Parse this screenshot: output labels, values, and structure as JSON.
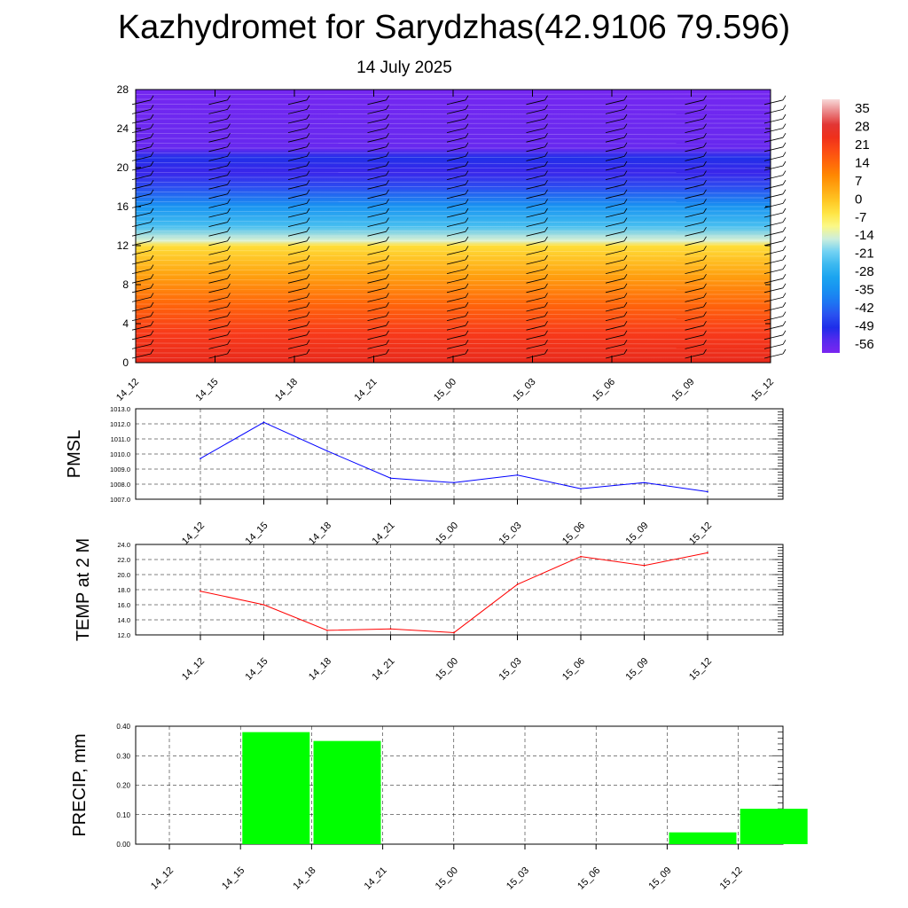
{
  "header": {
    "title": "Kazhydromet for Sarydzhas(42.9106 79.596)",
    "date": "14 July 2025"
  },
  "chart_data": [
    {
      "type": "heatmap",
      "ylim": [
        0,
        28
      ],
      "y_ticks": [
        "0",
        "4",
        "8",
        "12",
        "16",
        "20",
        "24",
        "28"
      ],
      "x_ticks": [
        "14_12",
        "14_15",
        "14_18",
        "14_21",
        "15_00",
        "15_03",
        "15_06",
        "15_09",
        "15_12"
      ],
      "colorbar_labels": [
        "35",
        "28",
        "21",
        "14",
        "7",
        "0",
        "-7",
        "-14",
        "-21",
        "-28",
        "-35",
        "-42",
        "-49",
        "-56"
      ],
      "colorbar_range": [
        -63,
        42
      ],
      "profile": [
        {
          "y": 0,
          "value": 28
        },
        {
          "y": 3,
          "value": 24
        },
        {
          "y": 6,
          "value": 16
        },
        {
          "y": 9,
          "value": 6
        },
        {
          "y": 12,
          "value": -4
        },
        {
          "y": 12.5,
          "value": -15
        },
        {
          "y": 14,
          "value": -25
        },
        {
          "y": 16,
          "value": -36
        },
        {
          "y": 18,
          "value": -48
        },
        {
          "y": 19.5,
          "value": -56
        },
        {
          "y": 21,
          "value": -52
        },
        {
          "y": 22,
          "value": -60
        },
        {
          "y": 28,
          "value": -62
        }
      ],
      "colors": {
        "dark_red": "#e0201c",
        "red": "#f83a1a",
        "orange": "#ff8b00",
        "yellow": "#fff86a",
        "light_blue": "#9ae1f5",
        "blue": "#18a3f0",
        "deep_blue": "#1a22e6",
        "violet": "#7a26f0"
      }
    },
    {
      "type": "line",
      "ylabel": "PMSL",
      "ylim": [
        1007.0,
        1013.0
      ],
      "y_ticks": [
        "1007.0",
        "1008.0",
        "1009.0",
        "1010.0",
        "1011.0",
        "1012.0",
        "1013.0"
      ],
      "categories": [
        "14_12",
        "14_15",
        "14_18",
        "14_21",
        "15_00",
        "15_03",
        "15_06",
        "15_09",
        "15_12"
      ],
      "values": [
        1009.7,
        1012.1,
        1010.2,
        1008.4,
        1008.1,
        1008.6,
        1007.7,
        1008.1,
        1007.5
      ],
      "color": "#0000ff"
    },
    {
      "type": "line",
      "ylabel": "TEMP at 2 M",
      "ylim": [
        12.0,
        24.0
      ],
      "y_ticks": [
        "12.0",
        "14.0",
        "16.0",
        "18.0",
        "20.0",
        "22.0",
        "24.0"
      ],
      "categories": [
        "14_12",
        "14_15",
        "14_18",
        "14_21",
        "15_00",
        "15_03",
        "15_06",
        "15_09",
        "15_12"
      ],
      "values": [
        17.8,
        16.0,
        12.6,
        12.8,
        12.3,
        18.7,
        22.4,
        21.2,
        22.9
      ],
      "color": "#ff0000"
    },
    {
      "type": "bar",
      "ylabel": "PRECIP, mm",
      "ylim": [
        0.0,
        0.4
      ],
      "y_ticks": [
        "0.00",
        "0.10",
        "0.20",
        "0.30",
        "0.40"
      ],
      "categories": [
        "14_12",
        "14_15",
        "14_18",
        "14_21",
        "15_00",
        "15_03",
        "15_06",
        "15_09",
        "15_12"
      ],
      "values": [
        0.0,
        0.38,
        0.35,
        0.0,
        0.0,
        0.0,
        0.0,
        0.04,
        0.12
      ],
      "color": "#00ff00"
    }
  ]
}
